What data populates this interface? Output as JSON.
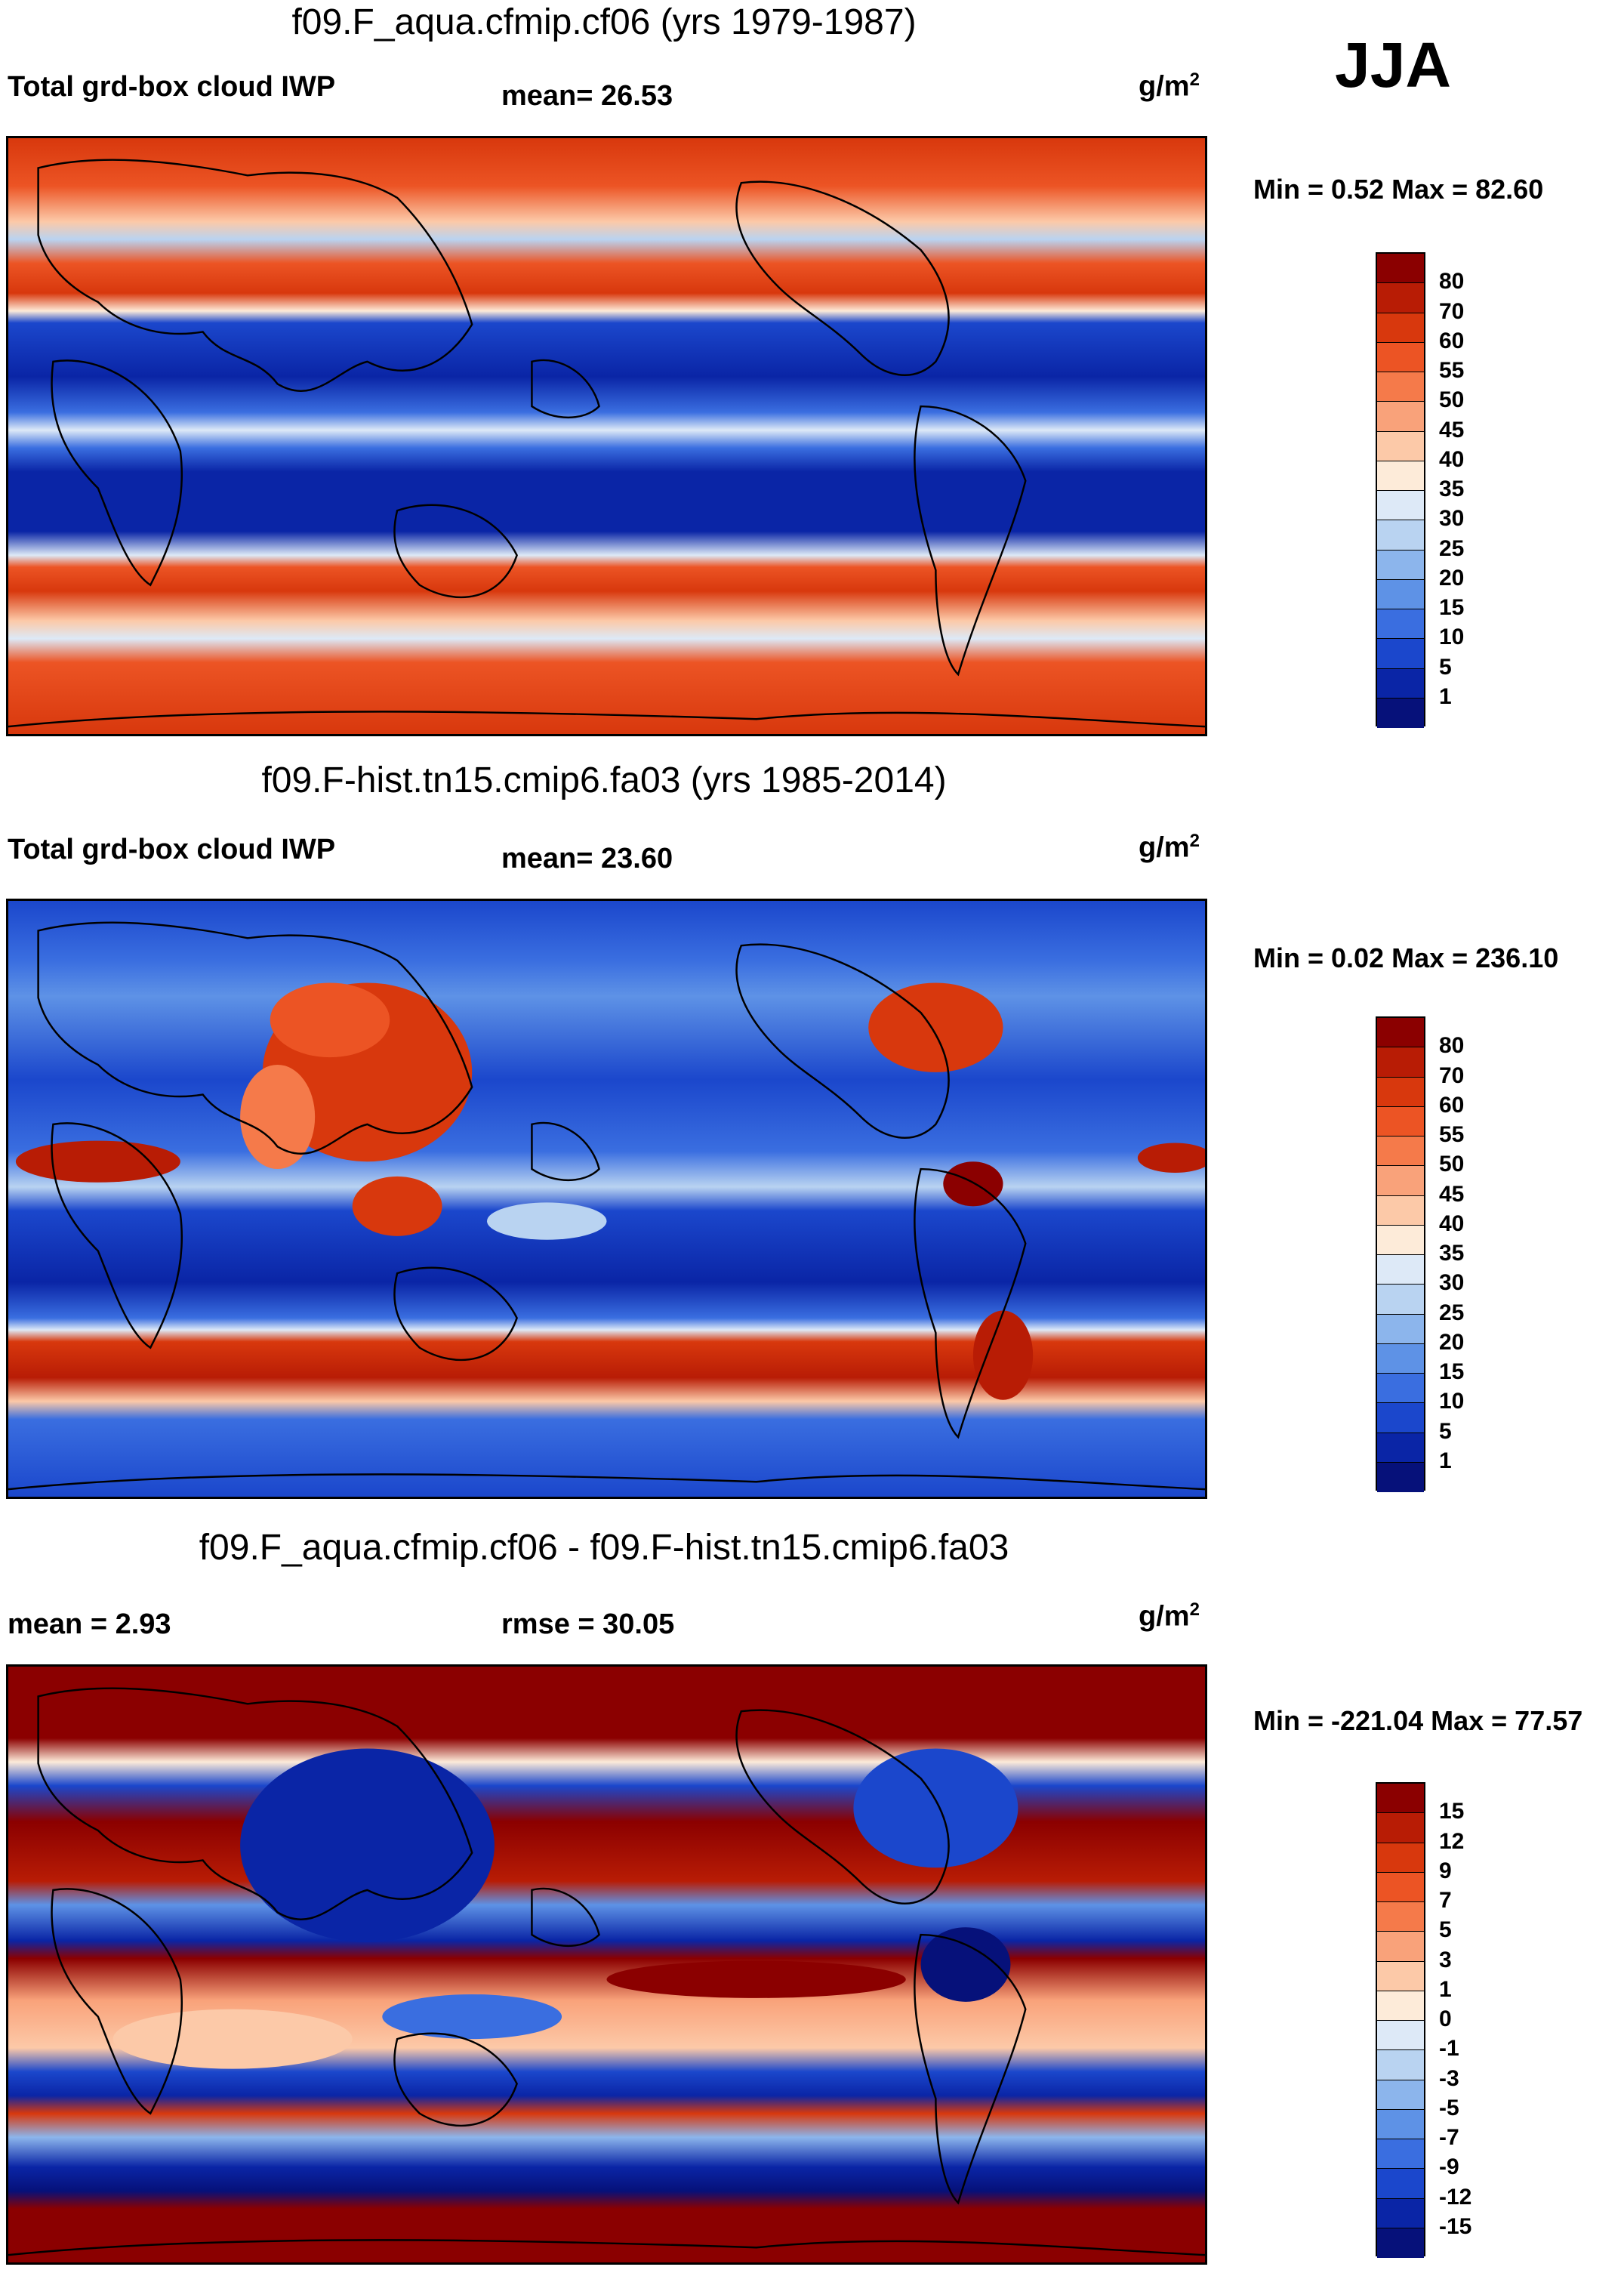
{
  "season": "JJA",
  "panels": [
    {
      "title": "f09.F_aqua.cfmip.cf06 (yrs 1979-1987)",
      "left_label": "Total grd-box cloud IWP",
      "center_label": "mean=  26.53",
      "units": "g/m",
      "units_sup": "2",
      "minmax": "Min =   0.52 Max =  82.60",
      "colorbar": {
        "levels": [
          "80",
          "70",
          "60",
          "55",
          "50",
          "45",
          "40",
          "35",
          "30",
          "25",
          "20",
          "15",
          "10",
          "5",
          "1"
        ],
        "colors": [
          "#8b0000",
          "#b81c05",
          "#d8380d",
          "#ec5424",
          "#f57a4a",
          "#f9a27a",
          "#fcc9a8",
          "#fdebd9",
          "#dde9f7",
          "#b9d3f1",
          "#8cb5ec",
          "#5e92e6",
          "#3a6ee0",
          "#1b47cc",
          "#0a25a6",
          "#06117a"
        ]
      }
    },
    {
      "title": "f09.F-hist.tn15.cmip6.fa03 (yrs 1985-2014)",
      "left_label": "Total grd-box cloud IWP",
      "center_label": "mean=  23.60",
      "units": "g/m",
      "units_sup": "2",
      "minmax": "Min =   0.02 Max = 236.10",
      "colorbar": {
        "levels": [
          "80",
          "70",
          "60",
          "55",
          "50",
          "45",
          "40",
          "35",
          "30",
          "25",
          "20",
          "15",
          "10",
          "5",
          "1"
        ],
        "colors": [
          "#8b0000",
          "#b81c05",
          "#d8380d",
          "#ec5424",
          "#f57a4a",
          "#f9a27a",
          "#fcc9a8",
          "#fdebd9",
          "#dde9f7",
          "#b9d3f1",
          "#8cb5ec",
          "#5e92e6",
          "#3a6ee0",
          "#1b47cc",
          "#0a25a6",
          "#06117a"
        ]
      }
    },
    {
      "title": "f09.F_aqua.cfmip.cf06 - f09.F-hist.tn15.cmip6.fa03",
      "left_label": "mean =    2.93",
      "center_label": "rmse =  30.05",
      "units": "g/m",
      "units_sup": "2",
      "minmax": "Min = -221.04 Max =  77.57",
      "colorbar": {
        "levels": [
          "15",
          "12",
          "9",
          "7",
          "5",
          "3",
          "1",
          "0",
          "-1",
          "-3",
          "-5",
          "-7",
          "-9",
          "-12",
          "-15"
        ],
        "colors": [
          "#8b0000",
          "#b81c05",
          "#d8380d",
          "#ec5424",
          "#f57a4a",
          "#f9a27a",
          "#fcc9a8",
          "#fdebd9",
          "#dde9f7",
          "#b9d3f1",
          "#8cb5ec",
          "#5e92e6",
          "#3a6ee0",
          "#1b47cc",
          "#0a25a6",
          "#06117a"
        ]
      }
    }
  ]
}
